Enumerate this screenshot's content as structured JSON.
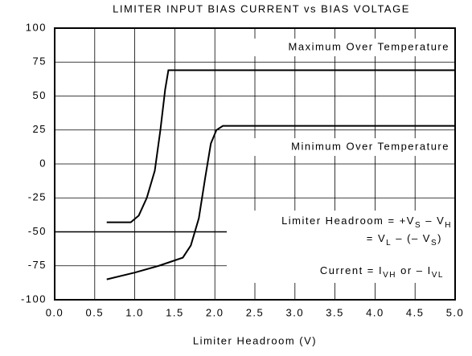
{
  "chart_data": {
    "type": "line",
    "title": "LIMITER INPUT BIAS CURRENT vs BIAS VOLTAGE",
    "xlabel": "Limiter Headroom (V)",
    "xlim": [
      0,
      5
    ],
    "ylim": [
      -100,
      100
    ],
    "xticks": [
      {
        "value": 0,
        "label": "0.0"
      },
      0.5,
      {
        "value": 1,
        "label": "1.0"
      },
      1.5,
      {
        "value": 2,
        "label": "2.0"
      },
      2.5,
      {
        "value": 3,
        "label": "3.0"
      },
      3.5,
      {
        "value": 4,
        "label": "4.0"
      },
      4.5,
      {
        "value": 5,
        "label": "5.0"
      }
    ],
    "yticks": [
      100,
      75,
      50,
      25,
      0,
      -25,
      -50,
      -75,
      -100
    ],
    "grid": true,
    "hline": -50,
    "series": [
      {
        "name": "Maximum Over Temperature",
        "color": "#000000",
        "x": [
          0.65,
          0.95,
          1.05,
          1.15,
          1.25,
          1.32,
          1.38,
          1.42,
          5.0
        ],
        "values": [
          -43,
          -43,
          -38,
          -25,
          -5,
          25,
          55,
          69,
          69
        ]
      },
      {
        "name": "Minimum Over Temperature",
        "color": "#000000",
        "x": [
          0.65,
          1.0,
          1.3,
          1.6,
          1.7,
          1.8,
          1.88,
          1.95,
          2.02,
          2.1,
          5.0
        ],
        "values": [
          -85,
          -80,
          -75,
          -69,
          -60,
          -40,
          -10,
          15,
          25,
          28,
          28
        ]
      }
    ],
    "annotations": {
      "headroom_1": [
        "Limiter Headroom = +V",
        "S",
        " – V",
        "H"
      ],
      "headroom_2": [
        "= V",
        "L",
        " – (– V",
        "S",
        ")"
      ],
      "current": [
        "Current = I",
        "VH",
        " or – I",
        "VL"
      ]
    }
  }
}
